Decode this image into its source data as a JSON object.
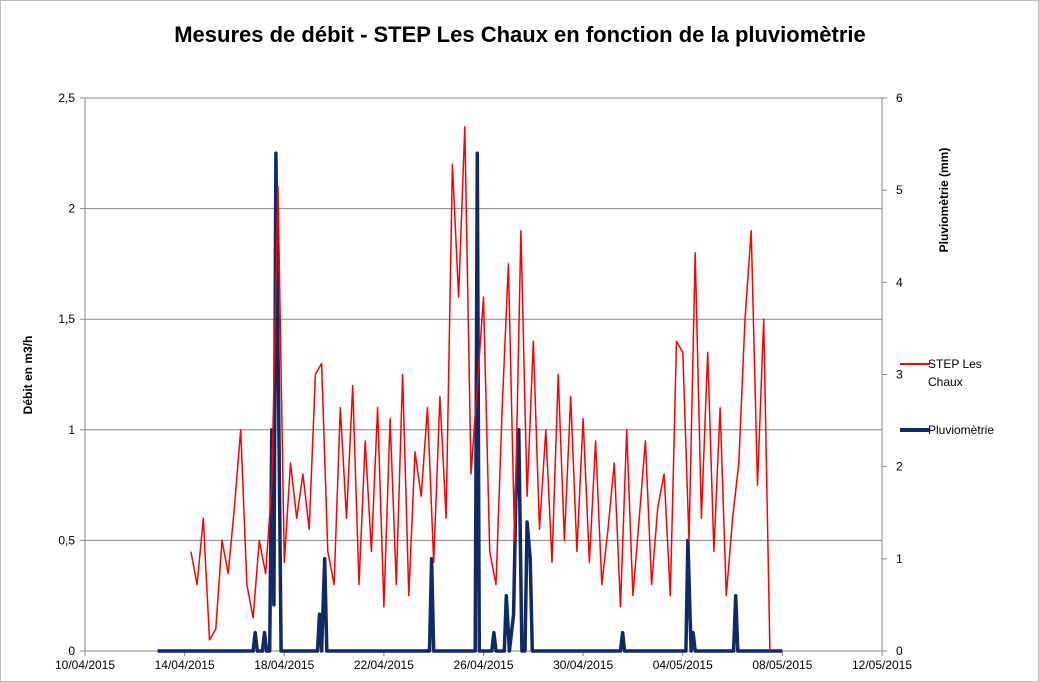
{
  "chart_data": {
    "type": "line",
    "title": "Mesures de débit - STEP Les Chaux en fonction de la pluviomètrie",
    "ylabel": "Débit en m3/h",
    "y2label": "Pluviomètrie (mm)",
    "xlim": [
      "2015-04-10T00:00",
      "2015-05-12T00:00"
    ],
    "xticks": [
      {
        "value": "2015-04-10T00:00",
        "label": "10/04/2015"
      },
      {
        "value": "2015-04-14T00:00",
        "label": "14/04/2015"
      },
      {
        "value": "2015-04-18T00:00",
        "label": "18/04/2015"
      },
      {
        "value": "2015-04-22T00:00",
        "label": "22/04/2015"
      },
      {
        "value": "2015-04-26T00:00",
        "label": "26/04/2015"
      },
      {
        "value": "2015-04-30T00:00",
        "label": "30/04/2015"
      },
      {
        "value": "2015-05-04T00:00",
        "label": "04/05/2015"
      },
      {
        "value": "2015-05-08T00:00",
        "label": "08/05/2015"
      },
      {
        "value": "2015-05-12T00:00",
        "label": "12/05/2015"
      }
    ],
    "ylim": [
      0,
      2.5
    ],
    "yticks": [
      0,
      {
        "value": 0.5,
        "label": "0,5"
      },
      1,
      {
        "value": 1.5,
        "label": "1,5"
      },
      2,
      {
        "value": 2.5,
        "label": "2,5"
      }
    ],
    "y2lim": [
      0,
      6
    ],
    "y2ticks": [
      0,
      1,
      2,
      3,
      4,
      5,
      6
    ],
    "grid": true,
    "legend": "right",
    "series": [
      {
        "name": "STEP Les Chaux",
        "color": "#ff0000",
        "x": [
          "2015-04-14T06:00",
          "2015-04-14T12:00",
          "2015-04-14T18:00",
          "2015-04-15T00:00",
          "2015-04-15T06:00",
          "2015-04-15T12:00",
          "2015-04-15T18:00",
          "2015-04-16T00:00",
          "2015-04-16T06:00",
          "2015-04-16T12:00",
          "2015-04-16T18:00",
          "2015-04-17T00:00",
          "2015-04-17T06:00",
          "2015-04-17T12:00",
          "2015-04-17T18:00",
          "2015-04-18T00:00",
          "2015-04-18T06:00",
          "2015-04-18T12:00",
          "2015-04-18T18:00",
          "2015-04-19T00:00",
          "2015-04-19T06:00",
          "2015-04-19T12:00",
          "2015-04-19T18:00",
          "2015-04-20T00:00",
          "2015-04-20T06:00",
          "2015-04-20T12:00",
          "2015-04-20T18:00",
          "2015-04-21T00:00",
          "2015-04-21T06:00",
          "2015-04-21T12:00",
          "2015-04-21T18:00",
          "2015-04-22T00:00",
          "2015-04-22T06:00",
          "2015-04-22T12:00",
          "2015-04-22T18:00",
          "2015-04-23T00:00",
          "2015-04-23T06:00",
          "2015-04-23T12:00",
          "2015-04-23T18:00",
          "2015-04-24T00:00",
          "2015-04-24T06:00",
          "2015-04-24T12:00",
          "2015-04-24T18:00",
          "2015-04-25T00:00",
          "2015-04-25T06:00",
          "2015-04-25T12:00",
          "2015-04-25T18:00",
          "2015-04-26T00:00",
          "2015-04-26T06:00",
          "2015-04-26T12:00",
          "2015-04-26T18:00",
          "2015-04-27T00:00",
          "2015-04-27T06:00",
          "2015-04-27T12:00",
          "2015-04-27T18:00",
          "2015-04-28T00:00",
          "2015-04-28T06:00",
          "2015-04-28T12:00",
          "2015-04-28T18:00",
          "2015-04-29T00:00",
          "2015-04-29T06:00",
          "2015-04-29T12:00",
          "2015-04-29T18:00",
          "2015-04-30T00:00",
          "2015-04-30T06:00",
          "2015-04-30T12:00",
          "2015-04-30T18:00",
          "2015-05-01T00:00",
          "2015-05-01T06:00",
          "2015-05-01T12:00",
          "2015-05-01T18:00",
          "2015-05-02T00:00",
          "2015-05-02T06:00",
          "2015-05-02T12:00",
          "2015-05-02T18:00",
          "2015-05-03T00:00",
          "2015-05-03T06:00",
          "2015-05-03T12:00",
          "2015-05-03T18:00",
          "2015-05-04T00:00",
          "2015-05-04T06:00",
          "2015-05-04T12:00",
          "2015-05-04T18:00",
          "2015-05-05T00:00",
          "2015-05-05T06:00",
          "2015-05-05T12:00",
          "2015-05-05T18:00",
          "2015-05-06T00:00",
          "2015-05-06T06:00",
          "2015-05-06T12:00",
          "2015-05-06T18:00",
          "2015-05-07T00:00",
          "2015-05-07T06:00",
          "2015-05-07T12:00"
        ],
        "values": [
          0.45,
          0.3,
          0.6,
          0.05,
          0.1,
          0.5,
          0.35,
          0.65,
          1.0,
          0.3,
          0.15,
          0.5,
          0.35,
          0.75,
          2.1,
          0.4,
          0.85,
          0.6,
          0.8,
          0.55,
          1.25,
          1.3,
          0.45,
          0.3,
          1.1,
          0.6,
          1.2,
          0.3,
          0.95,
          0.45,
          1.1,
          0.2,
          1.05,
          0.3,
          1.25,
          0.25,
          0.9,
          0.7,
          1.1,
          0.4,
          1.15,
          0.6,
          2.2,
          1.6,
          2.37,
          0.8,
          1.2,
          1.6,
          0.45,
          0.3,
          1.1,
          1.75,
          0.5,
          1.9,
          0.7,
          1.4,
          0.55,
          1.0,
          0.4,
          1.25,
          0.5,
          1.15,
          0.45,
          1.05,
          0.4,
          0.95,
          0.3,
          0.55,
          0.85,
          0.2,
          1.0,
          0.25,
          0.6,
          0.95,
          0.3,
          0.65,
          0.8,
          0.25,
          1.4,
          1.35,
          0.5,
          1.8,
          0.6,
          1.35,
          0.45,
          1.1,
          0.25,
          0.6,
          0.85,
          1.5,
          1.9,
          0.75,
          1.5,
          0
        ]
      },
      {
        "name": "Pluviomètrie",
        "color": "#0f2a66",
        "axis": "y2",
        "x": [
          "2015-04-12T22:00",
          "2015-04-16T18:00",
          "2015-04-16T20:00",
          "2015-04-16T22:00",
          "2015-04-17T03:00",
          "2015-04-17T05:00",
          "2015-04-17T07:00",
          "2015-04-17T10:00",
          "2015-04-17T12:00",
          "2015-04-17T14:00",
          "2015-04-17T16:00",
          "2015-04-17T19:00",
          "2015-04-17T21:00",
          "2015-04-19T08:00",
          "2015-04-19T10:00",
          "2015-04-19T12:00",
          "2015-04-19T15:00",
          "2015-04-19T17:00",
          "2015-04-23T20:00",
          "2015-04-23T22:00",
          "2015-04-24T00:00",
          "2015-04-25T16:00",
          "2015-04-25T18:00",
          "2015-04-25T20:00",
          "2015-04-26T08:00",
          "2015-04-26T10:00",
          "2015-04-26T12:00",
          "2015-04-26T20:00",
          "2015-04-26T22:00",
          "2015-04-27T01:00",
          "2015-04-27T05:00",
          "2015-04-27T07:00",
          "2015-04-27T10:00",
          "2015-04-27T13:00",
          "2015-04-27T16:00",
          "2015-04-27T18:00",
          "2015-04-27T21:00",
          "2015-04-27T23:00",
          "2015-05-01T12:00",
          "2015-05-01T14:00",
          "2015-05-01T16:00",
          "2015-05-04T03:00",
          "2015-05-04T05:00",
          "2015-05-04T08:00",
          "2015-05-04T10:00",
          "2015-05-04T12:00",
          "2015-05-06T01:00",
          "2015-05-06T03:00",
          "2015-05-06T05:00",
          "2015-05-08T00:00"
        ],
        "values": [
          0,
          0,
          0.2,
          0,
          0,
          0.2,
          0,
          0,
          2.4,
          0.5,
          5.4,
          2.2,
          0,
          0,
          0.4,
          0,
          1.0,
          0,
          0,
          1.0,
          0,
          0,
          5.4,
          0,
          0,
          0.2,
          0,
          0,
          0.6,
          0,
          0.4,
          1.6,
          2.4,
          0,
          0,
          1.4,
          1.0,
          0,
          0,
          0.2,
          0,
          0,
          1.2,
          0,
          0.2,
          0,
          0,
          0.6,
          0,
          0
        ]
      }
    ]
  }
}
